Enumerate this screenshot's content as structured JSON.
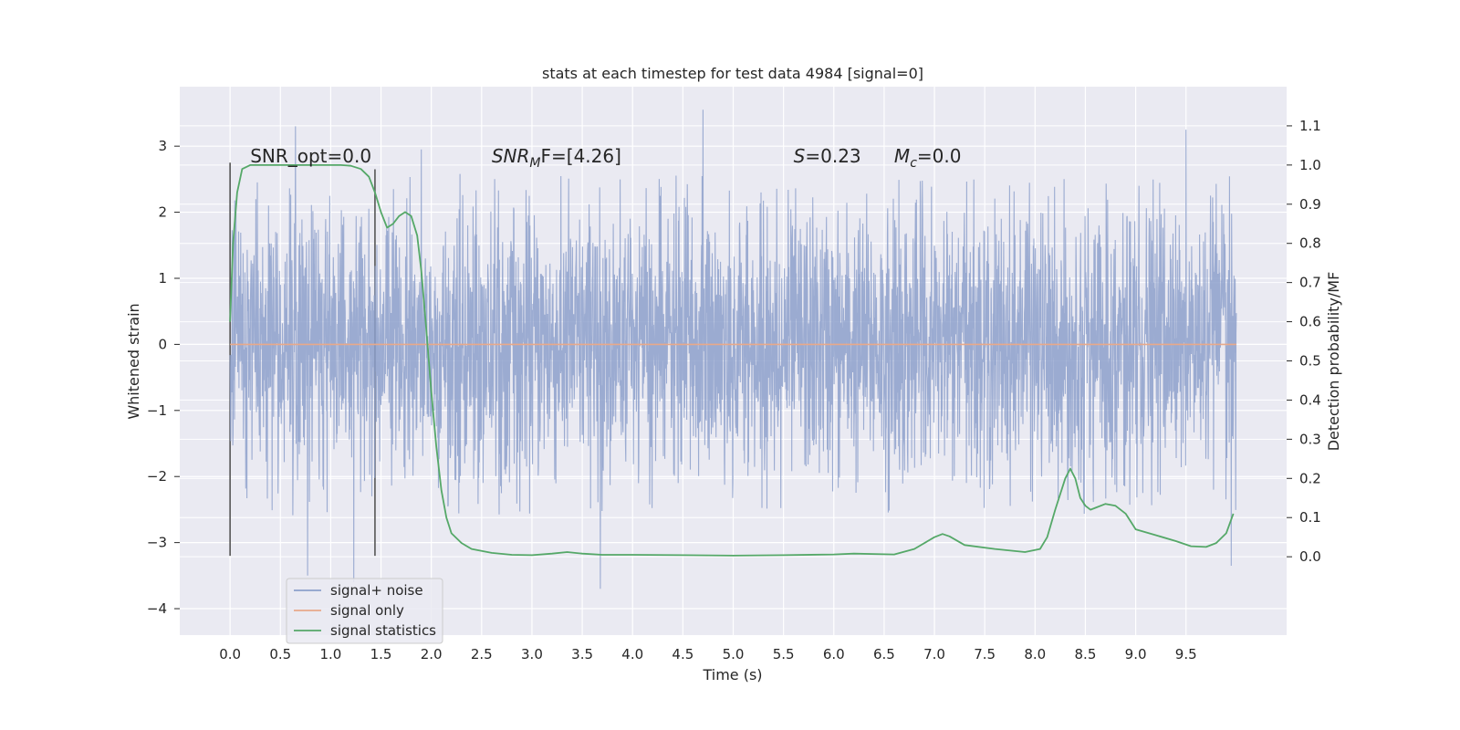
{
  "chart_data": {
    "type": "line",
    "title": "stats at each timestep for test data 4984 [signal=0]",
    "xlabel": "Time (s)",
    "ylabel": "Whitened strain",
    "y2label": "Detection probability/MF",
    "xlim": [
      -0.5,
      10.5
    ],
    "ylim": [
      -4.4,
      3.9
    ],
    "y2lim": [
      -0.2,
      1.2
    ],
    "x_ticks": [
      "0.0",
      "0.5",
      "1.0",
      "1.5",
      "2.0",
      "2.5",
      "3.0",
      "3.5",
      "4.0",
      "4.5",
      "5.0",
      "5.5",
      "6.0",
      "6.5",
      "7.0",
      "7.5",
      "8.0",
      "8.5",
      "9.0",
      "9.5"
    ],
    "y_ticks": [
      "3",
      "2",
      "1",
      "0",
      "−1",
      "−2",
      "−3",
      "−4"
    ],
    "y2_ticks": [
      "1.1",
      "1.0",
      "0.9",
      "0.8",
      "0.7",
      "0.6",
      "0.5",
      "0.4",
      "0.3",
      "0.2",
      "0.1",
      "0.0"
    ],
    "grid": true,
    "legend_position": "lower-left",
    "annotations": [
      {
        "key": "snr_opt",
        "text": "SNR_opt=0.0",
        "x": 0.2,
        "y": 2.85
      },
      {
        "key": "snr_mf",
        "prefix": "SNR",
        "sub": "M",
        "suffix": "F=[4.26]",
        "x": 2.6,
        "y": 2.85
      },
      {
        "key": "s",
        "prefix": "S",
        "suffix": "=0.23",
        "x": 5.6,
        "y": 2.85
      },
      {
        "key": "mc",
        "prefix": "M",
        "sub": "c",
        "suffix": "=0.0",
        "x": 6.6,
        "y": 2.85
      }
    ],
    "vertical_markers": [
      {
        "x": 0.0,
        "y_range": [
          -3.2,
          2.75
        ]
      },
      {
        "x": 1.44,
        "y_range": [
          -3.2,
          2.65
        ]
      }
    ],
    "series": [
      {
        "name": "signal+ noise",
        "color": "#8da0cb",
        "axis": "left",
        "x_range": [
          0.0,
          10.0
        ],
        "typical_range": [
          -1.5,
          1.5
        ],
        "peaks": [
          [
            0.65,
            3.3
          ],
          [
            0.77,
            -3.5
          ],
          [
            1.23,
            -3.6
          ],
          [
            1.9,
            2.95
          ],
          [
            3.68,
            -3.7
          ],
          [
            4.7,
            3.55
          ],
          [
            9.5,
            3.25
          ],
          [
            9.95,
            -3.35
          ]
        ]
      },
      {
        "name": "signal only",
        "color": "#e8a98a",
        "axis": "left",
        "x": [
          0.0,
          10.0
        ],
        "y": [
          0.0,
          0.0
        ]
      },
      {
        "name": "signal statistics",
        "color": "#55a868",
        "axis": "right",
        "x": [
          0.0,
          0.03,
          0.07,
          0.12,
          0.2,
          0.4,
          0.8,
          1.1,
          1.2,
          1.3,
          1.38,
          1.44,
          1.5,
          1.56,
          1.62,
          1.68,
          1.74,
          1.8,
          1.86,
          1.9,
          1.95,
          2.0,
          2.05,
          2.1,
          2.15,
          2.2,
          2.3,
          2.4,
          2.6,
          2.8,
          3.0,
          3.2,
          3.35,
          3.5,
          3.7,
          4.0,
          4.5,
          5.0,
          5.5,
          6.0,
          6.2,
          6.6,
          6.8,
          7.0,
          7.08,
          7.15,
          7.3,
          7.6,
          7.9,
          8.05,
          8.12,
          8.2,
          8.3,
          8.35,
          8.4,
          8.45,
          8.5,
          8.55,
          8.6,
          8.7,
          8.8,
          8.9,
          9.0,
          9.2,
          9.4,
          9.55,
          9.7,
          9.8,
          9.9,
          9.97
        ],
        "y": [
          0.6,
          0.8,
          0.93,
          0.99,
          1.0,
          1.0,
          1.0,
          1.0,
          0.998,
          0.99,
          0.97,
          0.93,
          0.88,
          0.84,
          0.85,
          0.87,
          0.88,
          0.87,
          0.82,
          0.73,
          0.58,
          0.42,
          0.28,
          0.17,
          0.1,
          0.06,
          0.035,
          0.02,
          0.01,
          0.005,
          0.004,
          0.008,
          0.012,
          0.008,
          0.005,
          0.005,
          0.004,
          0.003,
          0.004,
          0.006,
          0.008,
          0.006,
          0.02,
          0.05,
          0.058,
          0.052,
          0.03,
          0.02,
          0.012,
          0.02,
          0.05,
          0.12,
          0.2,
          0.225,
          0.2,
          0.15,
          0.13,
          0.12,
          0.125,
          0.135,
          0.13,
          0.11,
          0.07,
          0.055,
          0.04,
          0.027,
          0.025,
          0.035,
          0.06,
          0.11
        ]
      }
    ]
  }
}
